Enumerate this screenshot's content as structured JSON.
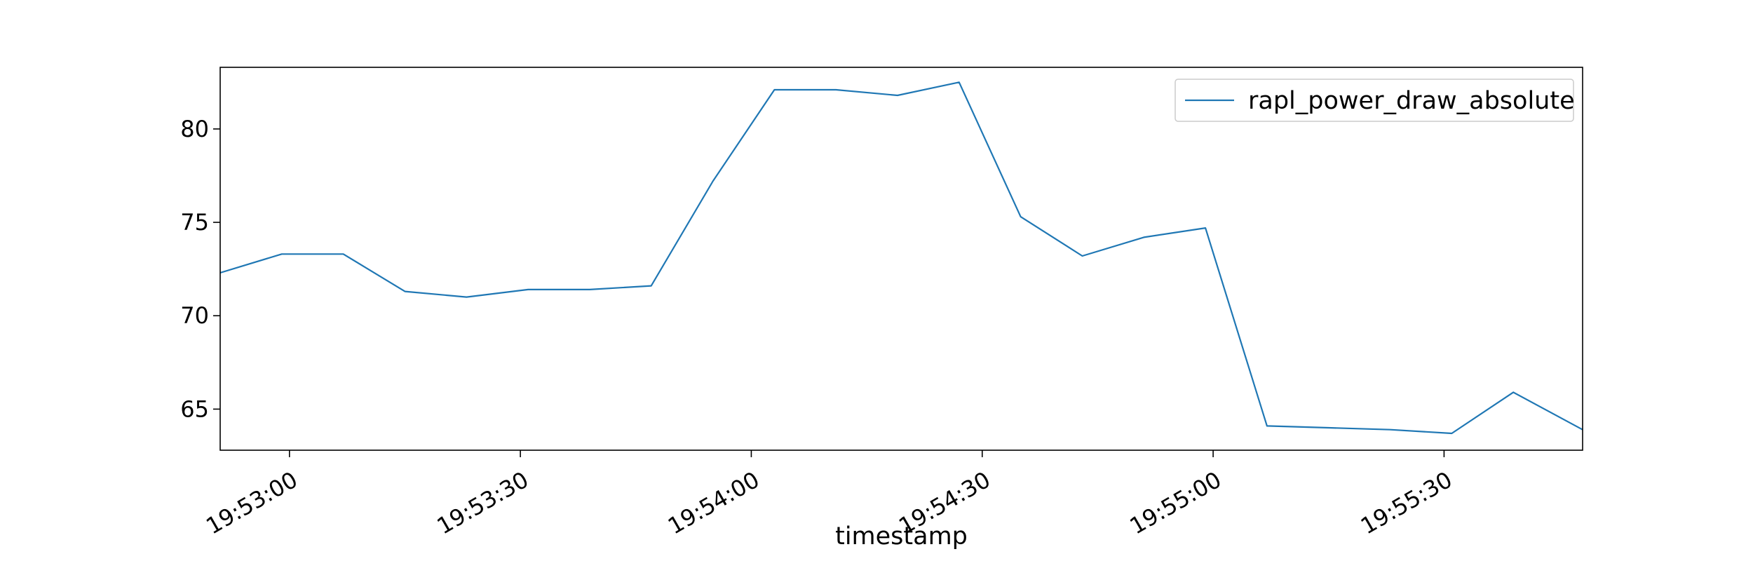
{
  "chart_data": {
    "type": "line",
    "title": "",
    "xlabel": "timestamp",
    "ylabel": "",
    "x_type": "time",
    "xlim": [
      "19:52:51",
      "19:55:48"
    ],
    "ylim": [
      62.8,
      83.3
    ],
    "x_ticks": [
      "19:53:00",
      "19:53:30",
      "19:54:00",
      "19:54:30",
      "19:55:00",
      "19:55:30"
    ],
    "y_ticks": [
      65,
      70,
      75,
      80
    ],
    "grid": false,
    "legend_position": "top-right",
    "series": [
      {
        "name": "rapl_power_draw_absolute",
        "color": "#1f77b4",
        "x": [
          "19:52:51",
          "19:52:59",
          "19:53:07",
          "19:53:15",
          "19:53:23",
          "19:53:31",
          "19:53:39",
          "19:53:47",
          "19:53:55",
          "19:54:03",
          "19:54:11",
          "19:54:19",
          "19:54:27",
          "19:54:35",
          "19:54:43",
          "19:54:51",
          "19:54:59",
          "19:55:07",
          "19:55:15",
          "19:55:23",
          "19:55:31",
          "19:55:39",
          "19:55:48"
        ],
        "y": [
          72.3,
          73.3,
          73.3,
          71.3,
          71.0,
          71.4,
          71.4,
          71.6,
          77.2,
          82.1,
          82.1,
          81.8,
          82.5,
          75.3,
          73.2,
          74.2,
          74.7,
          64.1,
          64.0,
          63.9,
          63.7,
          65.9,
          63.9
        ]
      }
    ]
  }
}
